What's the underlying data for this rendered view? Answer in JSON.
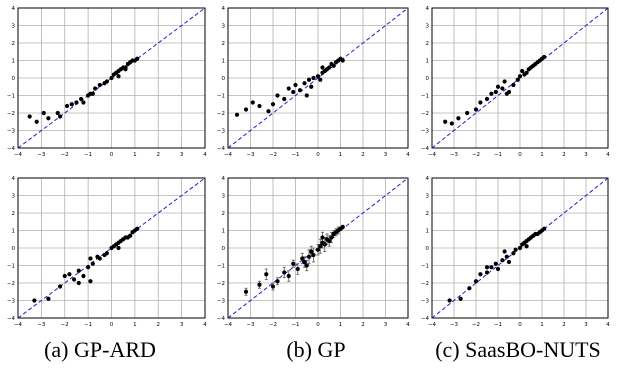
{
  "captions": [
    "(a) GP-ARD",
    "(b) GP",
    "(c) SaasBO-NUTS"
  ],
  "colors": {
    "points": "#000000",
    "diagonal": "#1f1fcc",
    "grid": "#b0b0b0",
    "axes": "#000000"
  },
  "chart_data": [
    {
      "type": "scatter",
      "title": "",
      "xlabel": "",
      "ylabel": "",
      "xlim": [
        -4,
        4
      ],
      "ylim": [
        -4,
        4
      ],
      "grid": true,
      "xticks": [
        -4,
        -3,
        -2,
        -1,
        0,
        1,
        2,
        3,
        4
      ],
      "yticks": [
        -4,
        -3,
        -2,
        -1,
        0,
        1,
        2,
        3,
        4
      ],
      "reference_line": "y=x dashed",
      "x": [
        -3.5,
        -3.2,
        -2.9,
        -2.7,
        -2.3,
        -2.2,
        -1.9,
        -1.7,
        -1.5,
        -1.3,
        -1.2,
        -1.0,
        -0.9,
        -0.8,
        -0.7,
        -0.5,
        -0.3,
        -0.2,
        0.0,
        0.1,
        0.2,
        0.3,
        0.4,
        0.5,
        0.6,
        0.7,
        0.8,
        0.9,
        1.0,
        1.1,
        0.3,
        0.6
      ],
      "y": [
        -2.2,
        -2.5,
        -2.0,
        -2.3,
        -2.0,
        -2.2,
        -1.6,
        -1.5,
        -1.4,
        -1.2,
        -1.4,
        -1.0,
        -0.9,
        -0.9,
        -0.6,
        -0.4,
        -0.3,
        -0.2,
        0.0,
        0.2,
        0.3,
        0.4,
        0.5,
        0.6,
        0.6,
        0.8,
        0.9,
        1.0,
        1.0,
        1.1,
        0.1,
        0.5
      ]
    },
    {
      "type": "scatter",
      "title": "",
      "xlabel": "",
      "ylabel": "",
      "xlim": [
        -4,
        4
      ],
      "ylim": [
        -4,
        4
      ],
      "grid": true,
      "xticks": [
        -4,
        -3,
        -2,
        -1,
        0,
        1,
        2,
        3,
        4
      ],
      "yticks": [
        -4,
        -3,
        -2,
        -1,
        0,
        1,
        2,
        3,
        4
      ],
      "reference_line": "y=x dashed",
      "x": [
        -3.6,
        -3.2,
        -2.9,
        -2.6,
        -2.2,
        -2.0,
        -1.8,
        -1.5,
        -1.3,
        -1.1,
        -1.0,
        -0.8,
        -0.6,
        -0.5,
        -0.3,
        -0.2,
        0.0,
        0.1,
        0.2,
        0.3,
        0.4,
        0.5,
        0.6,
        0.7,
        0.8,
        0.9,
        1.0,
        1.1,
        -0.4,
        0.2
      ],
      "y": [
        -2.1,
        -1.8,
        -1.4,
        -1.6,
        -1.9,
        -1.5,
        -1.0,
        -1.2,
        -0.6,
        -0.8,
        -0.4,
        -0.7,
        -0.3,
        -1.0,
        -0.5,
        0.0,
        0.1,
        -0.1,
        0.3,
        0.4,
        0.5,
        0.6,
        0.8,
        0.7,
        0.9,
        1.0,
        1.1,
        1.0,
        -0.1,
        0.6
      ]
    },
    {
      "type": "scatter",
      "title": "",
      "xlabel": "",
      "ylabel": "",
      "xlim": [
        -4,
        4
      ],
      "ylim": [
        -4,
        4
      ],
      "grid": true,
      "xticks": [
        -4,
        -3,
        -2,
        -1,
        0,
        1,
        2,
        3,
        4
      ],
      "yticks": [
        -4,
        -3,
        -2,
        -1,
        0,
        1,
        2,
        3,
        4
      ],
      "reference_line": "y=x dashed",
      "x": [
        -3.4,
        -3.1,
        -2.8,
        -2.4,
        -2.0,
        -1.8,
        -1.5,
        -1.3,
        -1.1,
        -1.0,
        -0.8,
        -0.7,
        -0.5,
        -0.3,
        -0.1,
        0.0,
        0.2,
        0.3,
        0.4,
        0.5,
        0.6,
        0.7,
        0.8,
        0.9,
        1.0,
        1.1,
        -0.6,
        0.1
      ],
      "y": [
        -2.5,
        -2.6,
        -2.3,
        -2.0,
        -1.8,
        -1.4,
        -1.2,
        -0.9,
        -0.8,
        -0.5,
        -0.6,
        -0.2,
        -0.8,
        -0.4,
        -0.1,
        0.1,
        0.2,
        0.3,
        0.5,
        0.6,
        0.7,
        0.8,
        0.9,
        1.0,
        1.1,
        1.2,
        -0.9,
        0.4
      ]
    },
    {
      "type": "scatter",
      "title": "",
      "xlabel": "",
      "ylabel": "",
      "xlim": [
        -4,
        4
      ],
      "ylim": [
        -4,
        4
      ],
      "grid": true,
      "xticks": [
        -4,
        -3,
        -2,
        -1,
        0,
        1,
        2,
        3,
        4
      ],
      "yticks": [
        -4,
        -3,
        -2,
        -1,
        0,
        1,
        2,
        3,
        4
      ],
      "reference_line": "y=x dashed",
      "x": [
        -3.3,
        -2.7,
        -2.2,
        -2.0,
        -1.8,
        -1.6,
        -1.4,
        -1.2,
        -1.0,
        -0.9,
        -0.8,
        -0.6,
        -0.5,
        -0.3,
        -0.2,
        0.0,
        0.1,
        0.2,
        0.3,
        0.4,
        0.5,
        0.6,
        0.7,
        0.8,
        0.9,
        1.0,
        1.1,
        -0.9,
        -1.4,
        0.3
      ],
      "y": [
        -3.0,
        -2.9,
        -2.2,
        -1.6,
        -1.5,
        -1.8,
        -1.3,
        -1.6,
        -1.1,
        -0.6,
        -0.9,
        -0.5,
        -0.6,
        -0.4,
        -0.3,
        0.0,
        0.1,
        0.2,
        0.3,
        0.4,
        0.5,
        0.6,
        0.6,
        0.7,
        0.9,
        1.0,
        1.1,
        -1.9,
        -2.0,
        0.0
      ]
    },
    {
      "type": "scatter",
      "title": "",
      "xlabel": "",
      "ylabel": "",
      "xlim": [
        -4,
        4
      ],
      "ylim": [
        -4,
        4
      ],
      "grid": true,
      "xticks": [
        -4,
        -3,
        -2,
        -1,
        0,
        1,
        2,
        3,
        4
      ],
      "yticks": [
        -4,
        -3,
        -2,
        -1,
        0,
        1,
        2,
        3,
        4
      ],
      "reference_line": "y=x dashed",
      "error_bars": true,
      "x": [
        -3.2,
        -2.6,
        -2.3,
        -2.0,
        -1.8,
        -1.5,
        -1.3,
        -1.1,
        -0.9,
        -0.7,
        -0.6,
        -0.4,
        -0.3,
        -0.2,
        0.0,
        0.1,
        0.2,
        0.3,
        0.4,
        0.5,
        0.6,
        0.7,
        0.8,
        0.9,
        1.0,
        1.1,
        -0.5,
        0.2
      ],
      "y": [
        -2.5,
        -2.1,
        -1.5,
        -2.2,
        -1.9,
        -1.4,
        -1.6,
        -0.9,
        -1.2,
        -0.6,
        -0.8,
        -0.5,
        -0.2,
        -0.4,
        -0.1,
        0.1,
        0.3,
        0.2,
        0.5,
        0.4,
        0.6,
        0.8,
        0.9,
        1.0,
        1.1,
        1.2,
        -1.0,
        0.6
      ],
      "yerr": [
        0.2,
        0.2,
        0.3,
        0.2,
        0.2,
        0.3,
        0.3,
        0.2,
        0.3,
        0.3,
        0.3,
        0.4,
        0.3,
        0.4,
        0.3,
        0.4,
        0.3,
        0.4,
        0.3,
        0.3,
        0.3,
        0.2,
        0.2,
        0.2,
        0.1,
        0.1,
        0.3,
        0.3
      ]
    },
    {
      "type": "scatter",
      "title": "",
      "xlabel": "",
      "ylabel": "",
      "xlim": [
        -4,
        4
      ],
      "ylim": [
        -4,
        4
      ],
      "grid": true,
      "xticks": [
        -4,
        -3,
        -2,
        -1,
        0,
        1,
        2,
        3,
        4
      ],
      "yticks": [
        -4,
        -3,
        -2,
        -1,
        0,
        1,
        2,
        3,
        4
      ],
      "reference_line": "y=x dashed",
      "x": [
        -3.2,
        -2.7,
        -2.3,
        -2.0,
        -1.8,
        -1.5,
        -1.3,
        -1.1,
        -1.0,
        -0.8,
        -0.6,
        -0.5,
        -0.3,
        -0.2,
        0.0,
        0.1,
        0.2,
        0.3,
        0.4,
        0.5,
        0.6,
        0.7,
        0.8,
        0.9,
        1.0,
        1.1,
        -0.7,
        -1.5,
        0.3
      ],
      "y": [
        -3.0,
        -2.9,
        -2.3,
        -1.9,
        -1.5,
        -1.4,
        -1.1,
        -0.9,
        -1.2,
        -0.7,
        -0.5,
        -0.8,
        -0.3,
        -0.1,
        0.0,
        0.2,
        0.3,
        0.4,
        0.5,
        0.6,
        0.7,
        0.8,
        0.8,
        0.9,
        1.0,
        1.1,
        -0.2,
        -1.1,
        0.1
      ]
    }
  ]
}
